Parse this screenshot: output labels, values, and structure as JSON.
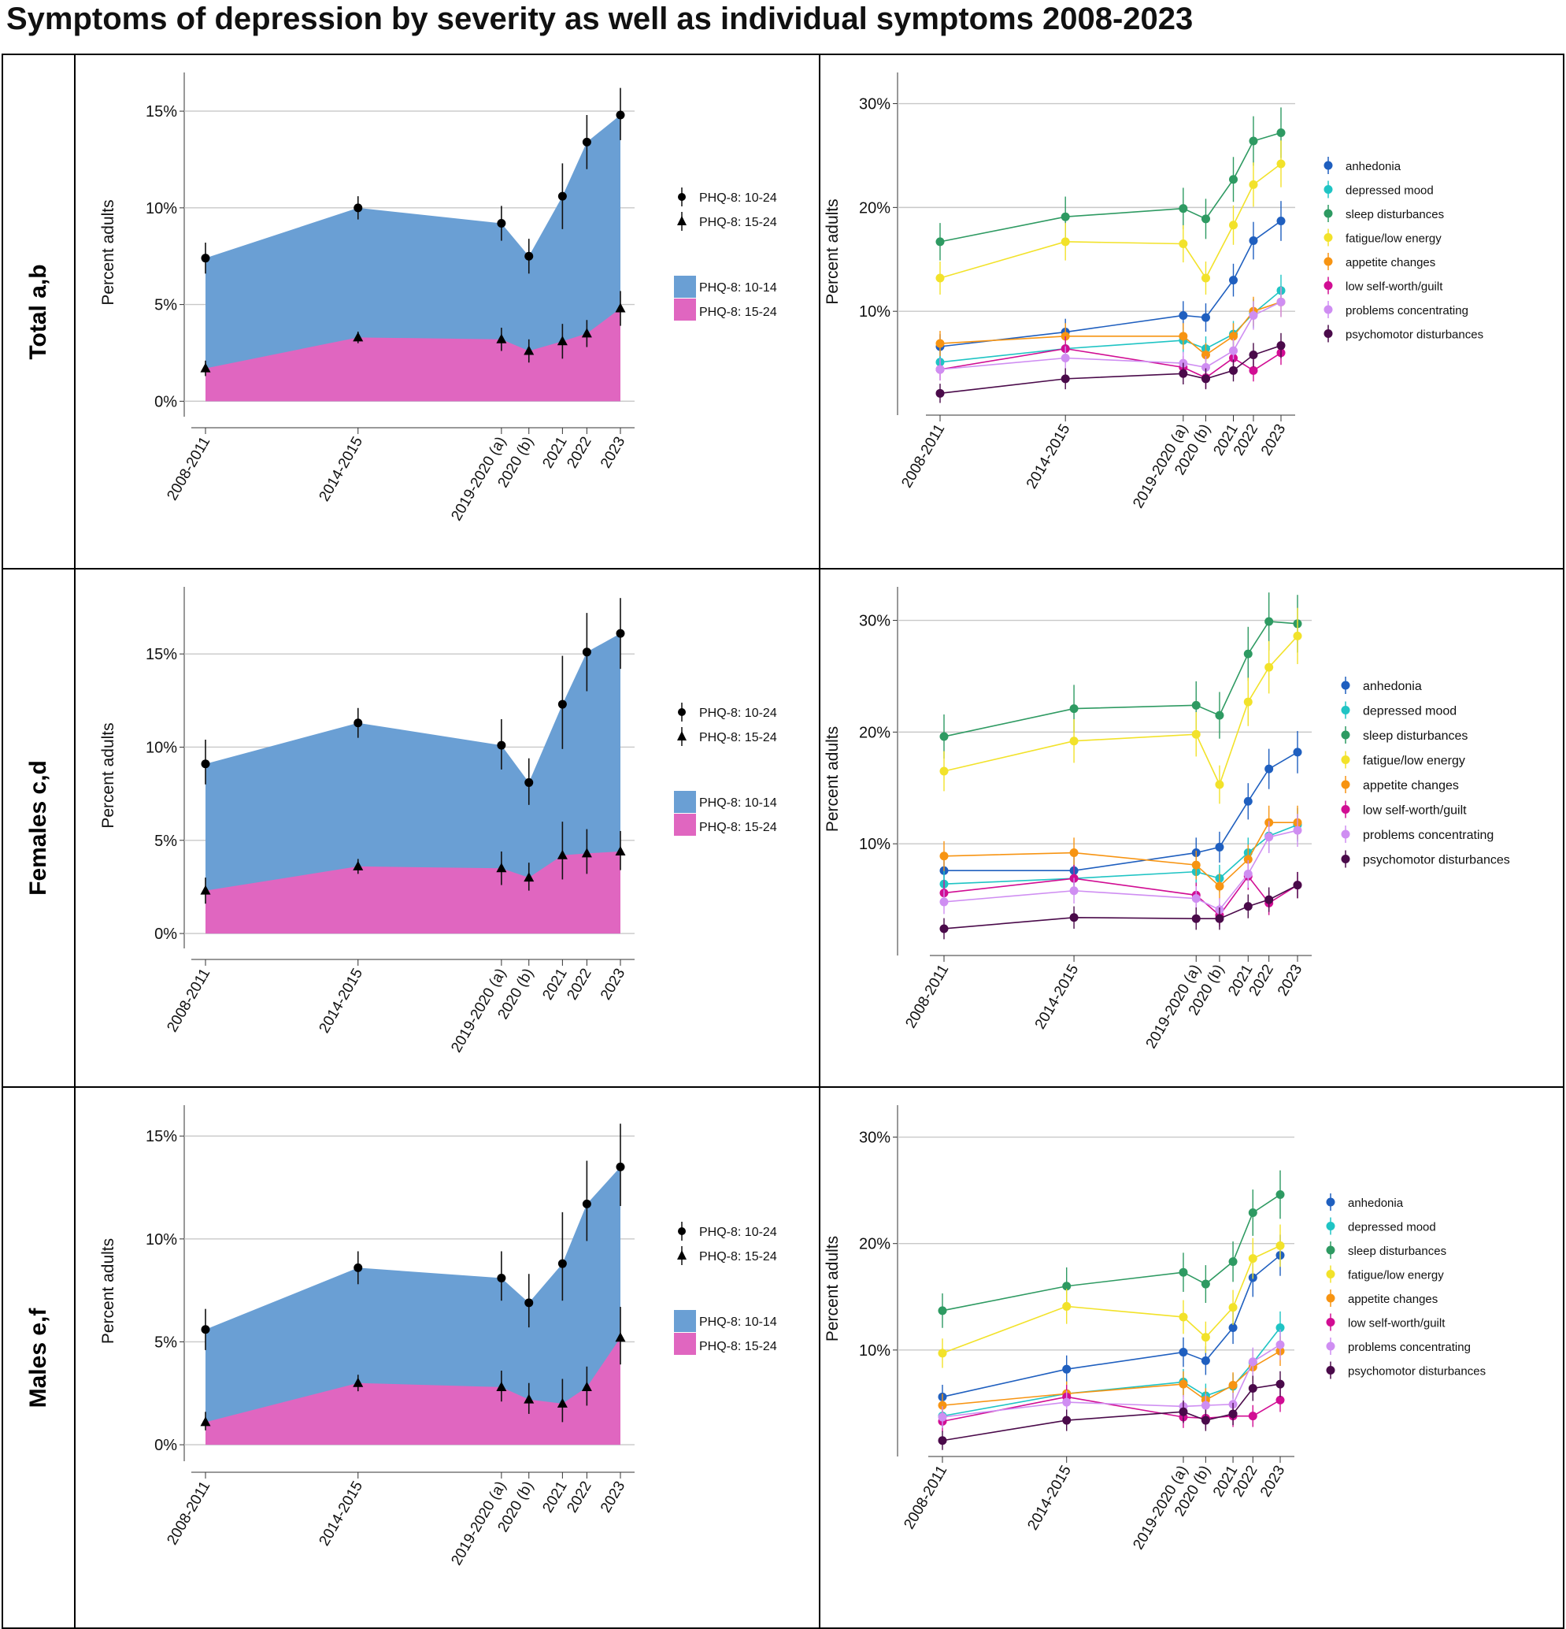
{
  "title": "Symptoms of depression by severity as well as individual symptoms 2008-2023",
  "categories": [
    "2008-2011",
    "2014-2015",
    "2019-2020 (a)",
    "2020 (b)",
    "2021",
    "2022",
    "2023"
  ],
  "category_x": [
    2009.5,
    2014.5,
    2019.2,
    2020.1,
    2021.2,
    2022.0,
    2023.1
  ],
  "ylabel": "Percent adults",
  "colors": {
    "phq_10_14": "#6a9fd4",
    "phq_15_24": "#e066c0",
    "anhedonia": "#1f5fbf",
    "depressed mood": "#1fc4c4",
    "sleep disturbances": "#2e9a62",
    "fatigue/low energy": "#f2e22a",
    "appetite changes": "#f79412",
    "low self-worth/guilt": "#d10d93",
    "problems concentrating": "#cf8ef2",
    "psychomotor disturbances": "#4a0a4a"
  },
  "severity_legend": {
    "marker1": "PHQ-8: 10-24",
    "marker2": "PHQ-8: 15-24",
    "area1": "PHQ-8: 10-14",
    "area2": "PHQ-8: 15-24"
  },
  "rows": [
    {
      "label": "Total a,b",
      "chart_data": [
        {
          "type": "area",
          "title": "Total a,b — severity",
          "ylabel": "Percent adults",
          "yticks": [
            0,
            5,
            10,
            15
          ],
          "ylim": [
            -0.8,
            17
          ],
          "series": [
            {
              "name": "PHQ-8: 10-24",
              "values": [
                7.4,
                10.0,
                9.2,
                7.5,
                10.6,
                13.4,
                14.8
              ],
              "ci": [
                [
                  6.6,
                  8.2
                ],
                [
                  9.4,
                  10.6
                ],
                [
                  8.3,
                  10.1
                ],
                [
                  6.6,
                  8.4
                ],
                [
                  8.9,
                  12.3
                ],
                [
                  12.0,
                  14.8
                ],
                [
                  13.5,
                  16.2
                ]
              ]
            },
            {
              "name": "PHQ-8: 15-24",
              "values": [
                1.7,
                3.3,
                3.2,
                2.6,
                3.1,
                3.5,
                4.8
              ],
              "ci": [
                [
                  1.3,
                  2.1
                ],
                [
                  3.0,
                  3.6
                ],
                [
                  2.6,
                  3.8
                ],
                [
                  2.0,
                  3.2
                ],
                [
                  2.2,
                  4.0
                ],
                [
                  2.8,
                  4.2
                ],
                [
                  3.9,
                  5.7
                ]
              ]
            }
          ]
        },
        {
          "type": "line",
          "title": "Total a,b — individual symptoms",
          "ylabel": "Percent adults",
          "yticks": [
            10,
            20,
            30
          ],
          "ylim": [
            0,
            33
          ],
          "series": [
            {
              "name": "anhedonia",
              "values": [
                6.6,
                8.0,
                9.6,
                9.4,
                13.0,
                16.8,
                18.7
              ]
            },
            {
              "name": "depressed mood",
              "values": [
                5.1,
                6.4,
                7.2,
                6.4,
                7.8,
                9.8,
                12.0
              ]
            },
            {
              "name": "sleep disturbances",
              "values": [
                16.7,
                19.1,
                19.9,
                18.9,
                22.7,
                26.4,
                27.2
              ]
            },
            {
              "name": "fatigue/low energy",
              "values": [
                13.2,
                16.7,
                16.5,
                13.2,
                18.3,
                22.2,
                24.2
              ]
            },
            {
              "name": "appetite changes",
              "values": [
                6.9,
                7.6,
                7.6,
                5.8,
                7.6,
                10.0,
                10.9
              ]
            },
            {
              "name": "low self-worth/guilt",
              "values": [
                4.4,
                6.4,
                4.6,
                3.6,
                5.5,
                4.3,
                6.0
              ]
            },
            {
              "name": "problems concentrating",
              "values": [
                4.4,
                5.5,
                5.0,
                4.6,
                6.2,
                9.6,
                10.9
              ]
            },
            {
              "name": "psychomotor disturbances",
              "values": [
                2.1,
                3.5,
                4.0,
                3.5,
                4.3,
                5.8,
                6.7
              ]
            }
          ]
        }
      ]
    },
    {
      "label": "Females c,d",
      "chart_data": [
        {
          "type": "area",
          "title": "Females c,d — severity",
          "ylabel": "Percent adults",
          "yticks": [
            0,
            5,
            10,
            15
          ],
          "ylim": [
            -0.8,
            18.6
          ],
          "series": [
            {
              "name": "PHQ-8: 10-24",
              "values": [
                9.1,
                11.3,
                10.1,
                8.1,
                12.3,
                15.1,
                16.1
              ],
              "ci": [
                [
                  8.0,
                  10.4
                ],
                [
                  10.5,
                  12.1
                ],
                [
                  8.8,
                  11.5
                ],
                [
                  6.9,
                  9.4
                ],
                [
                  9.9,
                  14.9
                ],
                [
                  13.0,
                  17.2
                ],
                [
                  14.2,
                  18.0
                ]
              ]
            },
            {
              "name": "PHQ-8: 15-24",
              "values": [
                2.3,
                3.6,
                3.5,
                3.0,
                4.2,
                4.3,
                4.4
              ],
              "ci": [
                [
                  1.6,
                  3.0
                ],
                [
                  3.2,
                  4.0
                ],
                [
                  2.6,
                  4.4
                ],
                [
                  2.3,
                  3.8
                ],
                [
                  2.9,
                  6.0
                ],
                [
                  3.2,
                  5.6
                ],
                [
                  3.4,
                  5.5
                ]
              ]
            }
          ]
        },
        {
          "type": "line",
          "title": "Females c,d — individual symptoms",
          "ylabel": "Percent adults",
          "yticks": [
            10,
            20,
            30
          ],
          "ylim": [
            0,
            33
          ],
          "series": [
            {
              "name": "anhedonia",
              "values": [
                7.6,
                7.6,
                9.2,
                9.7,
                13.8,
                16.7,
                18.2
              ]
            },
            {
              "name": "depressed mood",
              "values": [
                6.4,
                6.9,
                7.5,
                6.9,
                9.2,
                10.7,
                11.7
              ]
            },
            {
              "name": "sleep disturbances",
              "values": [
                19.6,
                22.1,
                22.4,
                21.5,
                27.0,
                29.9,
                29.7
              ]
            },
            {
              "name": "fatigue/low energy",
              "values": [
                16.5,
                19.2,
                19.8,
                15.3,
                22.7,
                25.8,
                28.6
              ]
            },
            {
              "name": "appetite changes",
              "values": [
                8.9,
                9.2,
                8.1,
                6.2,
                8.6,
                11.9,
                11.9
              ]
            },
            {
              "name": "low self-worth/guilt",
              "values": [
                5.6,
                6.9,
                5.4,
                3.6,
                7.1,
                4.7,
                6.3
              ]
            },
            {
              "name": "problems concentrating",
              "values": [
                4.8,
                5.8,
                5.1,
                4.1,
                7.3,
                10.6,
                11.2
              ]
            },
            {
              "name": "psychomotor disturbances",
              "values": [
                2.4,
                3.4,
                3.3,
                3.3,
                4.4,
                5.0,
                6.3
              ]
            }
          ]
        }
      ]
    },
    {
      "label": "Males e,f",
      "chart_data": [
        {
          "type": "area",
          "title": "Males e,f — severity",
          "ylabel": "Percent adults",
          "yticks": [
            0,
            5,
            10,
            15
          ],
          "ylim": [
            -0.8,
            16.5
          ],
          "series": [
            {
              "name": "PHQ-8: 10-24",
              "values": [
                5.6,
                8.6,
                8.1,
                6.9,
                8.8,
                11.7,
                13.5
              ],
              "ci": [
                [
                  4.6,
                  6.6
                ],
                [
                  7.8,
                  9.4
                ],
                [
                  7.0,
                  9.4
                ],
                [
                  5.7,
                  8.3
                ],
                [
                  7.0,
                  11.3
                ],
                [
                  9.9,
                  13.8
                ],
                [
                  11.6,
                  15.6
                ]
              ]
            },
            {
              "name": "PHQ-8: 15-24",
              "values": [
                1.1,
                3.0,
                2.8,
                2.2,
                2.0,
                2.8,
                5.2
              ],
              "ci": [
                [
                  0.7,
                  1.6
                ],
                [
                  2.6,
                  3.4
                ],
                [
                  2.1,
                  3.6
                ],
                [
                  1.5,
                  3.0
                ],
                [
                  1.1,
                  3.2
                ],
                [
                  1.9,
                  3.8
                ],
                [
                  3.9,
                  6.7
                ]
              ]
            }
          ]
        },
        {
          "type": "line",
          "title": "Males e,f — individual symptoms",
          "ylabel": "Percent adults",
          "yticks": [
            10,
            20,
            30
          ],
          "ylim": [
            0,
            33
          ],
          "series": [
            {
              "name": "anhedonia",
              "values": [
                5.6,
                8.2,
                9.8,
                9.0,
                12.1,
                16.8,
                18.9
              ]
            },
            {
              "name": "depressed mood",
              "values": [
                3.8,
                5.9,
                7.0,
                5.7,
                6.6,
                8.8,
                12.1
              ]
            },
            {
              "name": "sleep disturbances",
              "values": [
                13.7,
                16.0,
                17.3,
                16.2,
                18.3,
                22.9,
                24.6
              ]
            },
            {
              "name": "fatigue/low energy",
              "values": [
                9.7,
                14.1,
                13.1,
                11.2,
                14.0,
                18.6,
                19.8
              ]
            },
            {
              "name": "appetite changes",
              "values": [
                4.8,
                5.9,
                6.8,
                5.3,
                6.7,
                8.4,
                9.9
              ]
            },
            {
              "name": "low self-worth/guilt",
              "values": [
                3.3,
                5.6,
                3.7,
                3.6,
                3.8,
                3.8,
                5.3
              ]
            },
            {
              "name": "problems concentrating",
              "values": [
                3.7,
                5.1,
                4.7,
                4.8,
                4.9,
                8.9,
                10.5
              ]
            },
            {
              "name": "psychomotor disturbances",
              "values": [
                1.5,
                3.4,
                4.2,
                3.4,
                4.0,
                6.4,
                6.8
              ]
            }
          ]
        }
      ]
    }
  ]
}
